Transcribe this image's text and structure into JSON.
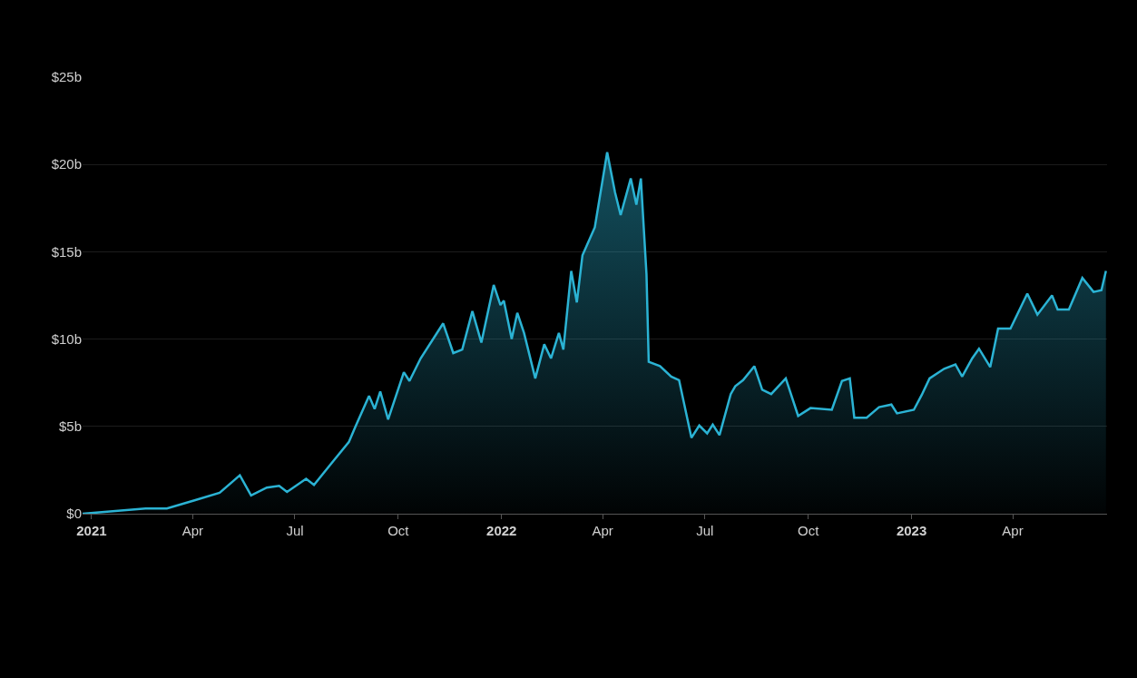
{
  "chart_data": {
    "type": "area",
    "x": [
      "2020-12-24",
      "2021-02-18",
      "2021-03-09",
      "2021-04-02",
      "2021-04-25",
      "2021-05-13",
      "2021-05-23",
      "2021-06-06",
      "2021-06-17",
      "2021-06-24",
      "2021-07-11",
      "2021-07-18",
      "2021-08-04",
      "2021-08-18",
      "2021-08-24",
      "2021-09-05",
      "2021-09-10",
      "2021-09-15",
      "2021-09-22",
      "2021-10-06",
      "2021-10-11",
      "2021-10-21",
      "2021-11-10",
      "2021-11-19",
      "2021-11-27",
      "2021-12-06",
      "2021-12-14",
      "2021-12-25",
      "2021-12-31",
      "2022-01-03",
      "2022-01-10",
      "2022-01-15",
      "2022-01-21",
      "2022-01-31",
      "2022-02-08",
      "2022-02-14",
      "2022-02-21",
      "2022-02-25",
      "2022-03-04",
      "2022-03-09",
      "2022-03-14",
      "2022-03-25",
      "2022-04-05",
      "2022-04-12",
      "2022-04-17",
      "2022-04-26",
      "2022-05-01",
      "2022-05-05",
      "2022-05-10",
      "2022-05-12",
      "2022-05-22",
      "2022-06-01",
      "2022-06-08",
      "2022-06-19",
      "2022-06-26",
      "2022-07-03",
      "2022-07-08",
      "2022-07-14",
      "2022-07-24",
      "2022-07-28",
      "2022-08-04",
      "2022-08-14",
      "2022-08-21",
      "2022-08-29",
      "2022-09-11",
      "2022-09-22",
      "2022-10-03",
      "2022-10-22",
      "2022-10-31",
      "2022-11-07",
      "2022-11-11",
      "2022-11-22",
      "2022-12-03",
      "2022-12-14",
      "2022-12-19",
      "2023-01-03",
      "2023-01-10",
      "2023-01-17",
      "2023-01-30",
      "2023-02-09",
      "2023-02-15",
      "2023-02-24",
      "2023-03-02",
      "2023-03-12",
      "2023-03-19",
      "2023-03-30",
      "2023-04-14",
      "2023-04-23",
      "2023-05-06",
      "2023-05-11",
      "2023-05-21",
      "2023-06-02",
      "2023-06-12",
      "2023-06-19",
      "2023-06-23"
    ],
    "series": [
      {
        "color": "#2bb3d4",
        "values": [
          0,
          0.3,
          0.3,
          0.75,
          1.2,
          2.2,
          1.05,
          1.5,
          1.6,
          1.25,
          2.0,
          1.65,
          3.0,
          4.1,
          5.0,
          6.75,
          6.0,
          7.0,
          5.4,
          8.1,
          7.6,
          8.9,
          10.9,
          9.2,
          9.4,
          11.6,
          9.8,
          13.1,
          11.95,
          12.2,
          10.0,
          11.5,
          10.35,
          7.75,
          9.7,
          8.9,
          10.35,
          9.4,
          13.9,
          12.1,
          14.8,
          16.4,
          20.7,
          18.4,
          17.1,
          19.2,
          17.7,
          19.2,
          13.7,
          8.7,
          8.45,
          7.85,
          7.65,
          4.35,
          5.05,
          4.6,
          5.1,
          4.5,
          6.85,
          7.3,
          7.65,
          8.45,
          7.1,
          6.85,
          7.75,
          5.6,
          6.05,
          5.95,
          7.6,
          7.75,
          5.5,
          5.5,
          6.1,
          6.25,
          5.75,
          5.95,
          6.8,
          7.75,
          8.3,
          8.55,
          7.85,
          8.9,
          9.45,
          8.4,
          10.6,
          10.6,
          12.6,
          11.4,
          12.5,
          11.7,
          11.7,
          13.5,
          12.7,
          12.8,
          13.9
        ]
      }
    ],
    "xlim": [
      "2020-12-24",
      "2023-06-24"
    ],
    "xticks": [
      {
        "value": "2021-01-01",
        "label": "2021"
      },
      {
        "value": "2021-04-01",
        "label": "Apr"
      },
      {
        "value": "2021-07-01",
        "label": "Jul"
      },
      {
        "value": "2021-10-01",
        "label": "Oct"
      },
      {
        "value": "2022-01-01",
        "label": "2022"
      },
      {
        "value": "2022-04-01",
        "label": "Apr"
      },
      {
        "value": "2022-07-01",
        "label": "Jul"
      },
      {
        "value": "2022-10-01",
        "label": "Oct"
      },
      {
        "value": "2023-01-01",
        "label": "2023"
      },
      {
        "value": "2023-04-01",
        "label": "Apr"
      }
    ],
    "ylim": [
      0,
      25
    ],
    "yticks": [
      {
        "value": 0,
        "label": "$0"
      },
      {
        "value": 5,
        "label": "$5b"
      },
      {
        "value": 10,
        "label": "$10b"
      },
      {
        "value": 15,
        "label": "$15b"
      },
      {
        "value": 20,
        "label": "$20b"
      },
      {
        "value": 25,
        "label": "$25b"
      }
    ],
    "grid": "y",
    "marker": "none",
    "line_style": "solid"
  }
}
